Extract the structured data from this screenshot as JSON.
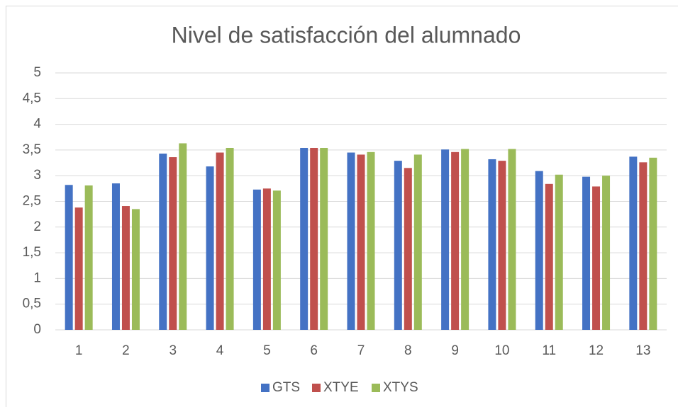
{
  "chart_data": {
    "type": "bar",
    "title": "Nivel de satisfacción del alumnado",
    "categories": [
      "1",
      "2",
      "3",
      "4",
      "5",
      "6",
      "7",
      "8",
      "9",
      "10",
      "11",
      "12",
      "13"
    ],
    "series": [
      {
        "name": "GTS",
        "color": "#4472c4",
        "values": [
          2.82,
          2.85,
          3.43,
          3.18,
          2.73,
          3.54,
          3.45,
          3.29,
          3.51,
          3.32,
          3.09,
          2.98,
          3.37
        ]
      },
      {
        "name": "XTYE",
        "color": "#c0504d",
        "values": [
          2.38,
          2.41,
          3.36,
          3.45,
          2.75,
          3.54,
          3.41,
          3.15,
          3.46,
          3.29,
          2.84,
          2.79,
          3.26
        ]
      },
      {
        "name": "XTYS",
        "color": "#9bbb59",
        "values": [
          2.81,
          2.35,
          3.63,
          3.54,
          2.71,
          3.54,
          3.46,
          3.41,
          3.52,
          3.52,
          3.02,
          3.0,
          3.35
        ]
      }
    ],
    "ylim": [
      0,
      5
    ],
    "yticks": [
      0,
      {
        "value": 0.5,
        "label": "0,5"
      },
      1,
      {
        "value": 1.5,
        "label": "1,5"
      },
      2,
      {
        "value": 2.5,
        "label": "2,5"
      },
      3,
      {
        "value": 3.5,
        "label": "3,5"
      },
      4,
      {
        "value": 4.5,
        "label": "4,5"
      },
      5
    ],
    "grid": true,
    "legend": "bottom"
  }
}
